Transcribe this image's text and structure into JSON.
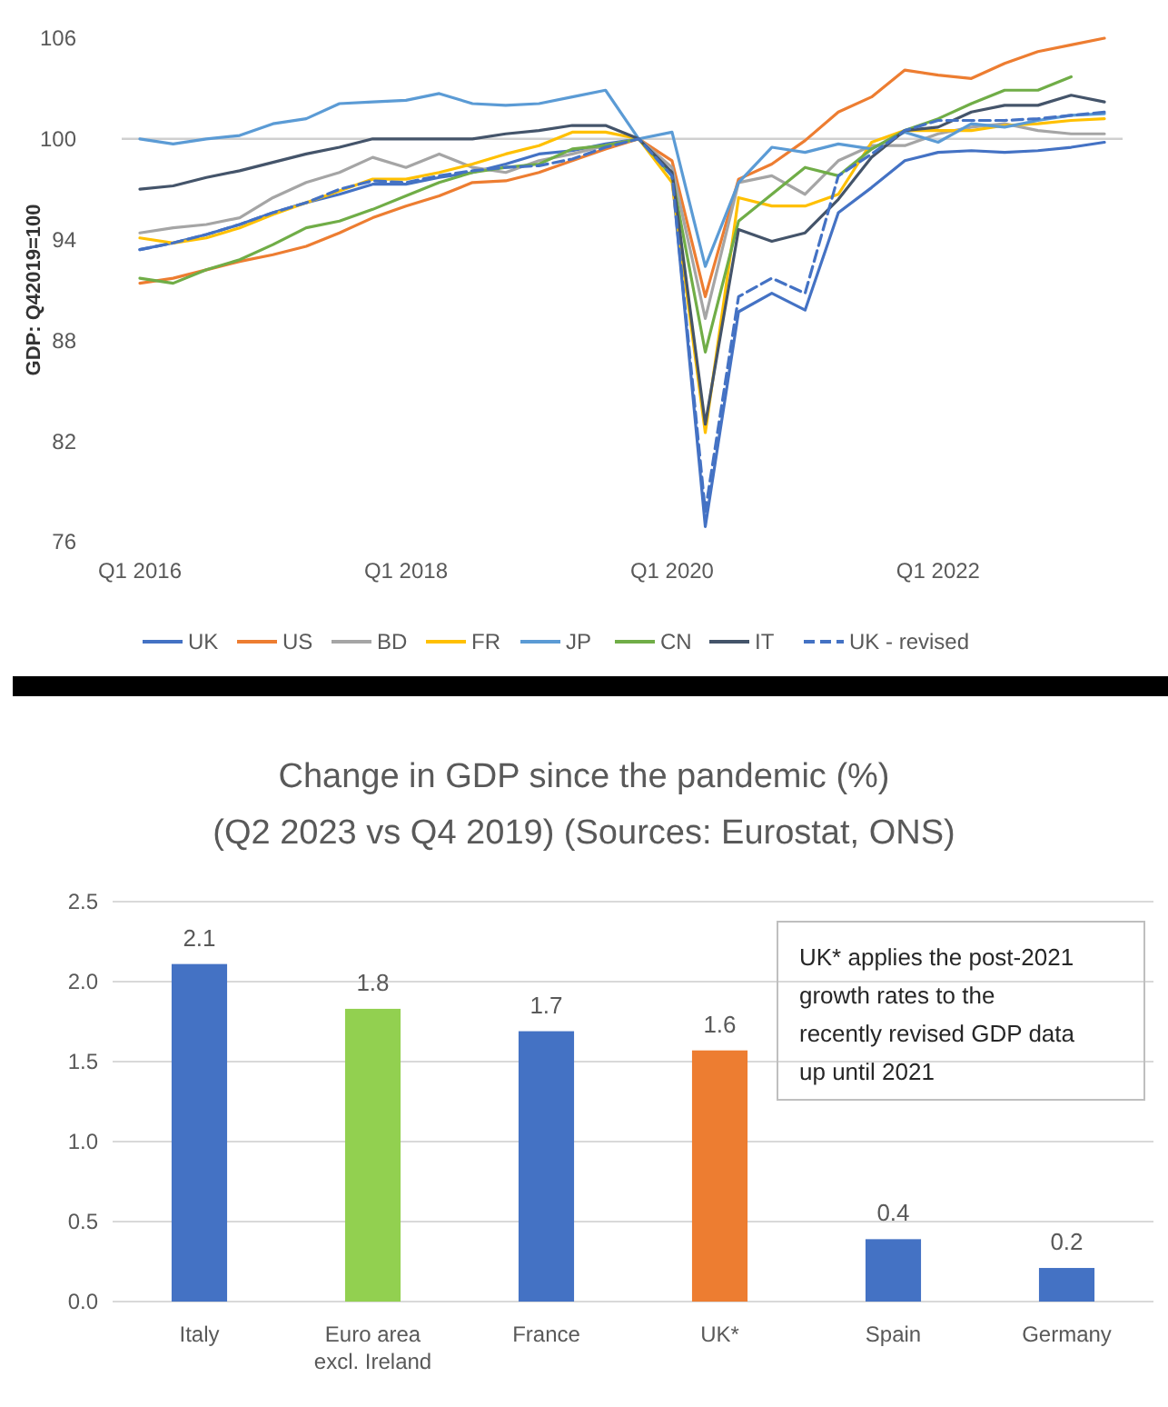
{
  "chart_data": [
    {
      "type": "line",
      "ylabel": "GDP: Q42019=100",
      "categories": [
        "Q1 2016",
        null,
        null,
        null,
        null,
        null,
        null,
        null,
        "Q1 2018",
        null,
        null,
        null,
        null,
        null,
        null,
        null,
        "Q1 2020",
        null,
        null,
        null,
        null,
        null,
        null,
        null,
        "Q1 2022",
        null,
        null,
        null,
        null,
        null
      ],
      "ylim": [
        76,
        106
      ],
      "yticks": [
        76,
        82,
        88,
        94,
        100,
        106
      ],
      "grid": false,
      "legend": "bottom",
      "ref_lines": [
        {
          "axis": "y",
          "value": 100,
          "color": "#d0d0d0"
        }
      ],
      "series": [
        {
          "name": "UK",
          "color": "#4472c4",
          "line_style": "solid",
          "values": [
            93.4,
            93.8,
            94.3,
            94.9,
            95.6,
            96.2,
            96.7,
            97.3,
            97.3,
            97.7,
            98.0,
            98.5,
            99.1,
            99.3,
            99.7,
            100,
            97.8,
            76.9,
            89.7,
            90.8,
            89.8,
            95.6,
            97.1,
            98.7,
            99.2,
            99.3,
            99.2,
            99.3,
            99.5,
            99.8
          ]
        },
        {
          "name": "US",
          "color": "#ed7d31",
          "line_style": "solid",
          "values": [
            91.4,
            91.7,
            92.2,
            92.7,
            93.1,
            93.6,
            94.4,
            95.3,
            96.0,
            96.6,
            97.4,
            97.5,
            98.0,
            98.7,
            99.4,
            100,
            98.7,
            90.6,
            97.6,
            98.5,
            99.9,
            101.6,
            102.5,
            104.1,
            103.8,
            103.6,
            104.5,
            105.2,
            105.6,
            106.0
          ]
        },
        {
          "name": "BD",
          "color": "#a5a5a5",
          "line_style": "solid",
          "values": [
            94.4,
            94.7,
            94.9,
            95.3,
            96.5,
            97.4,
            98.0,
            98.9,
            98.3,
            99.1,
            98.3,
            98.0,
            98.7,
            99.1,
            99.6,
            100,
            98.3,
            89.3,
            97.4,
            97.8,
            96.7,
            98.7,
            99.6,
            99.6,
            100.3,
            100.7,
            100.9,
            100.5,
            100.3,
            100.3
          ]
        },
        {
          "name": "FR",
          "color": "#ffc000",
          "line_style": "solid",
          "values": [
            94.1,
            93.8,
            94.1,
            94.7,
            95.5,
            96.2,
            96.9,
            97.6,
            97.6,
            98.0,
            98.5,
            99.1,
            99.6,
            100.4,
            100.4,
            100,
            97.4,
            82.5,
            96.5,
            96.0,
            96.0,
            96.7,
            99.8,
            100.5,
            100.5,
            100.5,
            100.8,
            100.9,
            101.1,
            101.2
          ]
        },
        {
          "name": "JP",
          "color": "#5b9bd5",
          "line_style": "solid",
          "values": [
            100.0,
            99.7,
            100.0,
            100.2,
            100.9,
            101.2,
            102.1,
            102.2,
            102.3,
            102.7,
            102.1,
            102.0,
            102.1,
            102.5,
            102.9,
            100,
            100.4,
            92.4,
            97.4,
            99.5,
            99.2,
            99.7,
            99.4,
            100.4,
            99.8,
            100.9,
            100.7,
            101.1,
            101.4,
            101.5
          ]
        },
        {
          "name": "CN",
          "color": "#70ad47",
          "line_style": "solid",
          "values": [
            91.7,
            91.4,
            92.2,
            92.8,
            93.7,
            94.7,
            95.1,
            95.8,
            96.6,
            97.4,
            98.0,
            98.3,
            98.5,
            99.4,
            99.6,
            100,
            97.8,
            87.3,
            95.1,
            96.7,
            98.3,
            97.8,
            99.4,
            100.5,
            101.2,
            102.1,
            102.9,
            102.9,
            103.7,
            null
          ]
        },
        {
          "name": "IT",
          "color": "#44546a",
          "line_style": "solid",
          "values": [
            97.0,
            97.2,
            97.7,
            98.1,
            98.6,
            99.1,
            99.5,
            100.0,
            100.0,
            100.0,
            100.0,
            100.3,
            100.5,
            100.8,
            100.8,
            100,
            98.0,
            83.0,
            94.6,
            93.9,
            94.4,
            96.4,
            98.9,
            100.5,
            100.7,
            101.6,
            102.0,
            102.0,
            102.6,
            102.2
          ]
        },
        {
          "name": "UK - revised",
          "color": "#4472c4",
          "line_style": "dashed",
          "values": [
            93.4,
            93.8,
            94.3,
            94.9,
            95.6,
            96.2,
            97.0,
            97.5,
            97.4,
            97.8,
            98.1,
            98.3,
            98.4,
            98.8,
            99.5,
            100,
            97.8,
            77.8,
            90.6,
            91.7,
            90.8,
            97.8,
            99.1,
            100.5,
            101.1,
            101.1,
            101.1,
            101.2,
            101.4,
            101.6
          ]
        }
      ]
    },
    {
      "type": "bar",
      "title": "Change in GDP since the pandemic (%)",
      "subtitle": "(Q2 2023 vs Q4 2019) (Sources: Eurostat, ONS)",
      "categories": [
        "Italy",
        "Euro area excl. Ireland",
        "France",
        "UK*",
        "Spain",
        "Germany"
      ],
      "values": [
        2.11,
        1.83,
        1.69,
        1.57,
        0.39,
        0.21
      ],
      "value_labels": [
        "2.1",
        "1.8",
        "1.7",
        "1.6",
        "0.4",
        "0.2"
      ],
      "colors": [
        "#4472c4",
        "#92d050",
        "#4472c4",
        "#ed7d31",
        "#4472c4",
        "#4472c4"
      ],
      "ylim": [
        0,
        2.5
      ],
      "yticks": [
        {
          "value": 0,
          "label": "0.0"
        },
        {
          "value": 0.5,
          "label": "0.5"
        },
        {
          "value": 1,
          "label": "1.0"
        },
        {
          "value": 1.5,
          "label": "1.5"
        },
        {
          "value": 2,
          "label": "2.0"
        },
        {
          "value": 2.5,
          "label": "2.5"
        }
      ],
      "grid": "y",
      "annotations": [
        "UK* applies the post-2021 growth rates to the recently revised GDP data up until 2021"
      ]
    }
  ]
}
